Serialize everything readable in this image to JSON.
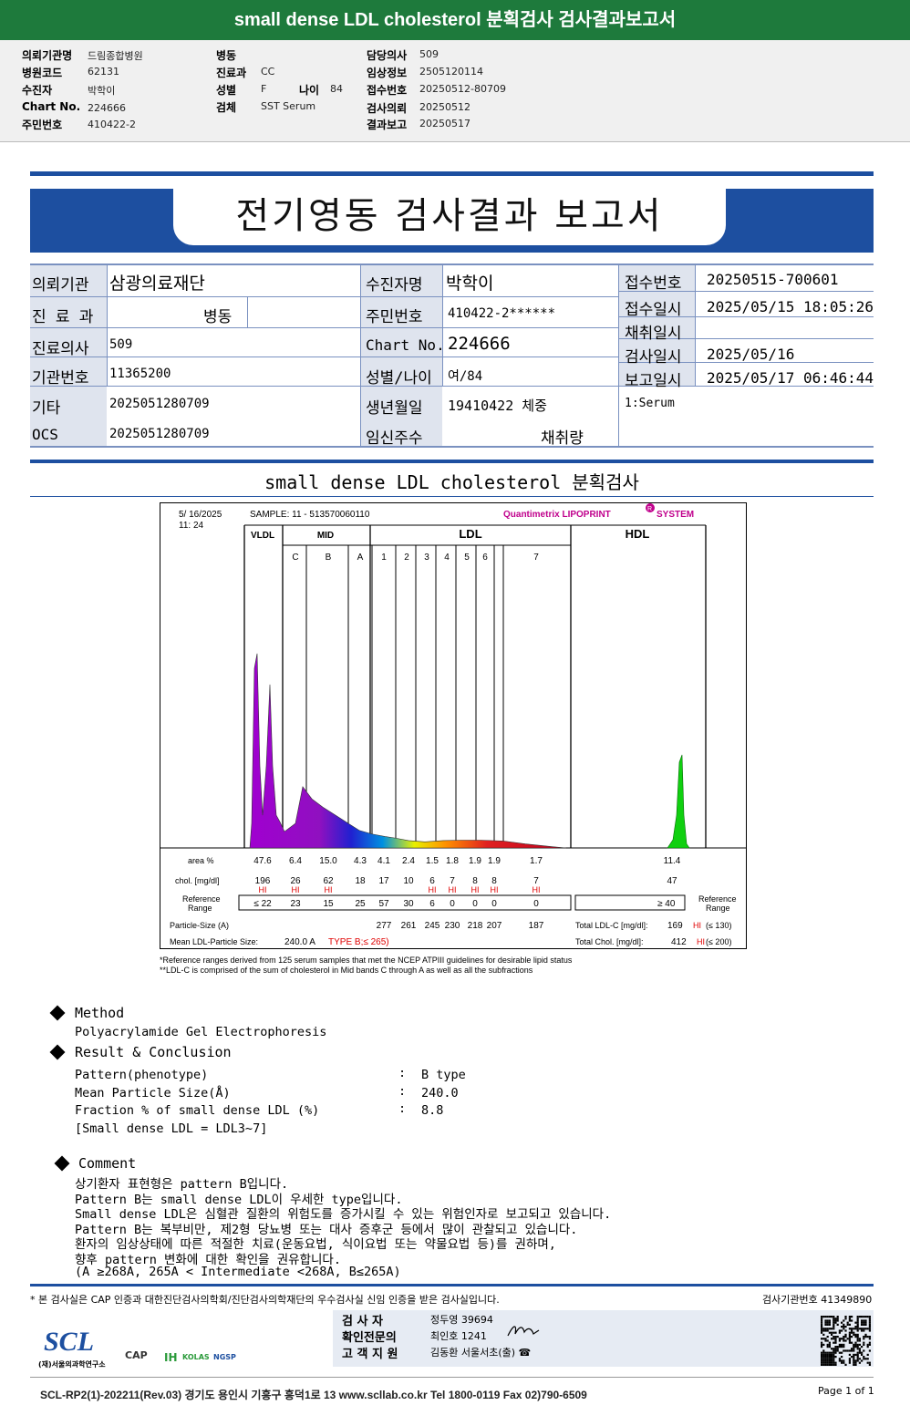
{
  "top_title": "small dense LDL cholesterol 분획검사 검사결과보고서",
  "header": {
    "col1": [
      [
        "의뢰기관명",
        "드림종합병원"
      ],
      [
        "병원코드",
        "62131"
      ],
      [
        "수진자",
        "박학이"
      ],
      [
        "Chart No.",
        "224666"
      ],
      [
        "주민번호",
        "410422-2"
      ]
    ],
    "col2": [
      [
        "병동",
        ""
      ],
      [
        "진료과",
        "CC"
      ],
      [
        "성별",
        "F"
      ],
      [
        "검체",
        "SST Serum"
      ]
    ],
    "age_label": "나이",
    "age_value": "84",
    "col3": [
      [
        "담당의사",
        "509"
      ],
      [
        "임상정보",
        "2505120114"
      ],
      [
        "접수번호",
        "20250512-80709"
      ],
      [
        "검사의뢰",
        "20250512"
      ],
      [
        "결과보고",
        "20250517"
      ]
    ]
  },
  "report_title": "전기영동 검사결과 보고서",
  "info": {
    "r1": [
      "의뢰기관",
      "삼광의료재단",
      "수진자명",
      "박학이",
      "접수번호",
      "20250515-700601"
    ],
    "r2": [
      "진 료 과",
      "병동",
      "주민번호",
      "410422-2******",
      "접수일시",
      "2025/05/15 18:05:26"
    ],
    "r2b": [
      "채취일시",
      ""
    ],
    "r3": [
      "진료의사",
      "509",
      "Chart No.",
      "224666",
      "검사일시",
      "2025/05/16"
    ],
    "r4": [
      "기관번호",
      "11365200",
      "성별/나이",
      "여/84",
      "보고일시",
      "2025/05/17 06:46:44"
    ],
    "r5": [
      "기타",
      "2025051280709",
      "생년월일",
      "19410422 체중",
      "1:Serum"
    ],
    "r6": [
      "OCS",
      "2025051280709",
      "임신주수",
      "채취량"
    ]
  },
  "section_title": "small dense LDL cholesterol 분획검사",
  "chart": {
    "date": "5/ 16/2025",
    "time": "11: 24",
    "sample": "SAMPLE:   11 - 513570060110",
    "system": "Quantimetrix LIPOPRINT",
    "system2": "SYSTEM",
    "reg": "R",
    "groups": [
      "VLDL",
      "MID",
      "LDL",
      "HDL"
    ],
    "bands": [
      "C",
      "B",
      "A",
      "1",
      "2",
      "3",
      "4",
      "5",
      "6",
      "7"
    ],
    "row_area_label": "area %",
    "row_chol_label": "chol. [mg/dl]",
    "ref_label1": "Reference",
    "ref_label2": "Range",
    "ps_label": "Particle-Size (A)",
    "mean_label": "Mean LDL-Particle Size:",
    "mean_value": "240.0 A",
    "type_text": "TYPE B;≤ 265)",
    "hdl_ref": "≥  40",
    "hi": "HI",
    "totals": [
      "Total LDL-C  [mg/dl]:",
      "169",
      "HI",
      "(≤ 130)",
      "Total Chol.  [mg/dl]:",
      "412",
      "HI",
      "(≤ 200)"
    ],
    "note1": "*Reference ranges derived from 125 serum samples that met the NCEP ATPIII guidelines for desirable lipid status",
    "note2": "**LDL-C is comprised of the sum of cholesterol in Mid bands C through A as well as all the subfractions"
  },
  "chart_data": {
    "type": "area",
    "title": "",
    "categories": [
      "VLDL",
      "C",
      "B",
      "A",
      "1",
      "2",
      "3",
      "4",
      "5",
      "6",
      "7",
      "HDL"
    ],
    "area_percent": [
      47.6,
      6.4,
      15.0,
      4.3,
      4.1,
      2.4,
      1.5,
      1.8,
      1.9,
      1.9,
      1.7,
      11.4
    ],
    "chol_mg_dl": [
      196,
      26,
      62,
      18,
      17,
      10,
      6,
      7,
      8,
      8,
      7,
      47
    ],
    "hi_flags": [
      true,
      true,
      true,
      false,
      false,
      false,
      true,
      true,
      true,
      true,
      true,
      false
    ],
    "reference_range": [
      "≤ 22",
      "23",
      "15",
      "25",
      "57",
      "30",
      "6",
      "0",
      "0",
      "0",
      "0",
      "≥ 40"
    ],
    "particle_size_A": [
      "",
      "",
      "",
      "",
      "277",
      "261",
      "245",
      "230",
      "218",
      "207",
      "187",
      ""
    ],
    "mean_ldl_particle_size": 240.0,
    "total_ldl_c": 169,
    "total_ldl_c_ref": "≤ 130",
    "total_chol": 412,
    "total_chol_ref": "≤ 200"
  },
  "method": {
    "heading": "Method",
    "text": "Polyacrylamide Gel Electrophoresis"
  },
  "result": {
    "heading": "Result & Conclusion",
    "rows": [
      [
        "Pattern(phenotype)",
        ":",
        "B type"
      ],
      [
        "Mean Particle Size(Å)",
        ":",
        "240.0"
      ],
      [
        "Fraction % of small dense LDL (%)",
        ":",
        "8.8"
      ]
    ],
    "note": "[Small dense LDL = LDL3~7]"
  },
  "comment": {
    "heading": "Comment",
    "lines": [
      "상기환자 표현형은 pattern B입니다.",
      "Pattern B는 small dense LDL이 우세한 type입니다.",
      "Small dense LDL은 심혈관 질환의 위험도를 증가시킬 수 있는 위험인자로 보고되고 있습니다.",
      "Pattern B는 복부비만, 제2형 당뇨병 또는 대사 증후군 등에서 많이 관찰되고 있습니다.",
      "환자의 임상상태에 따른 적절한 치료(운동요법, 식이요법 또는 약물요법 등)를 권하며,",
      "향후 pattern 변화에 대한 확인을 권유합니다.",
      "(A ≥268A, 265A < Intermediate <268A, B≤265A)"
    ]
  },
  "footer": {
    "cert": "* 본 검사실은 CAP 인증과 대한진단검사의학회/진단검사의학재단의 우수검사실 신임 인증을 받은 검사실입니다.",
    "lab_no": "검사기관번호  41349890",
    "sig_rows": [
      [
        "검  사  자",
        "정두영 39694"
      ],
      [
        "확인전문의",
        "최인호 1241"
      ],
      [
        "고 객 지 원",
        "김동환 서울서초(출) ☎"
      ]
    ],
    "scl": "SCL",
    "scl_sub": "(재)서울의과학연구소",
    "logos": [
      "CAP",
      "IH",
      "KOLAS",
      "NGSP"
    ],
    "bottom": "SCL-RP2(1)-202211(Rev.03)  경기도 용인시 기흥구 흥덕1로 13  www.scllab.co.kr  Tel 1800-0119   Fax 02)790-6509",
    "page": "Page 1 of 1"
  }
}
